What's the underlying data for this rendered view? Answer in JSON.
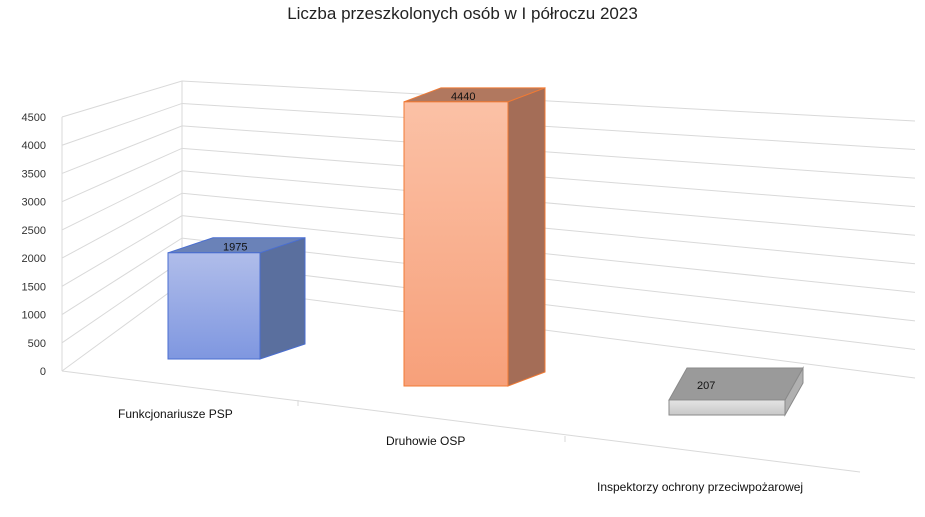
{
  "chart_data": {
    "type": "bar",
    "title": "Liczba przeszkolonych osób w I półroczu 2023",
    "categories": [
      "Funkcjonariusze PSP",
      "Druhowie OSP",
      "Inspektorzy ochrony przeciwpożarowej"
    ],
    "values": [
      1975,
      4440,
      207
    ],
    "data_labels": [
      "1975",
      "4440",
      "207"
    ],
    "yticks": [
      "0",
      "500",
      "1000",
      "1500",
      "2000",
      "2500",
      "3000",
      "3500",
      "4000",
      "4500"
    ],
    "ylim": [
      0,
      4500
    ],
    "grid": true,
    "legend": "none",
    "colors": [
      "#8fa6e3",
      "#f9a57f",
      "#a6a6a6"
    ]
  }
}
